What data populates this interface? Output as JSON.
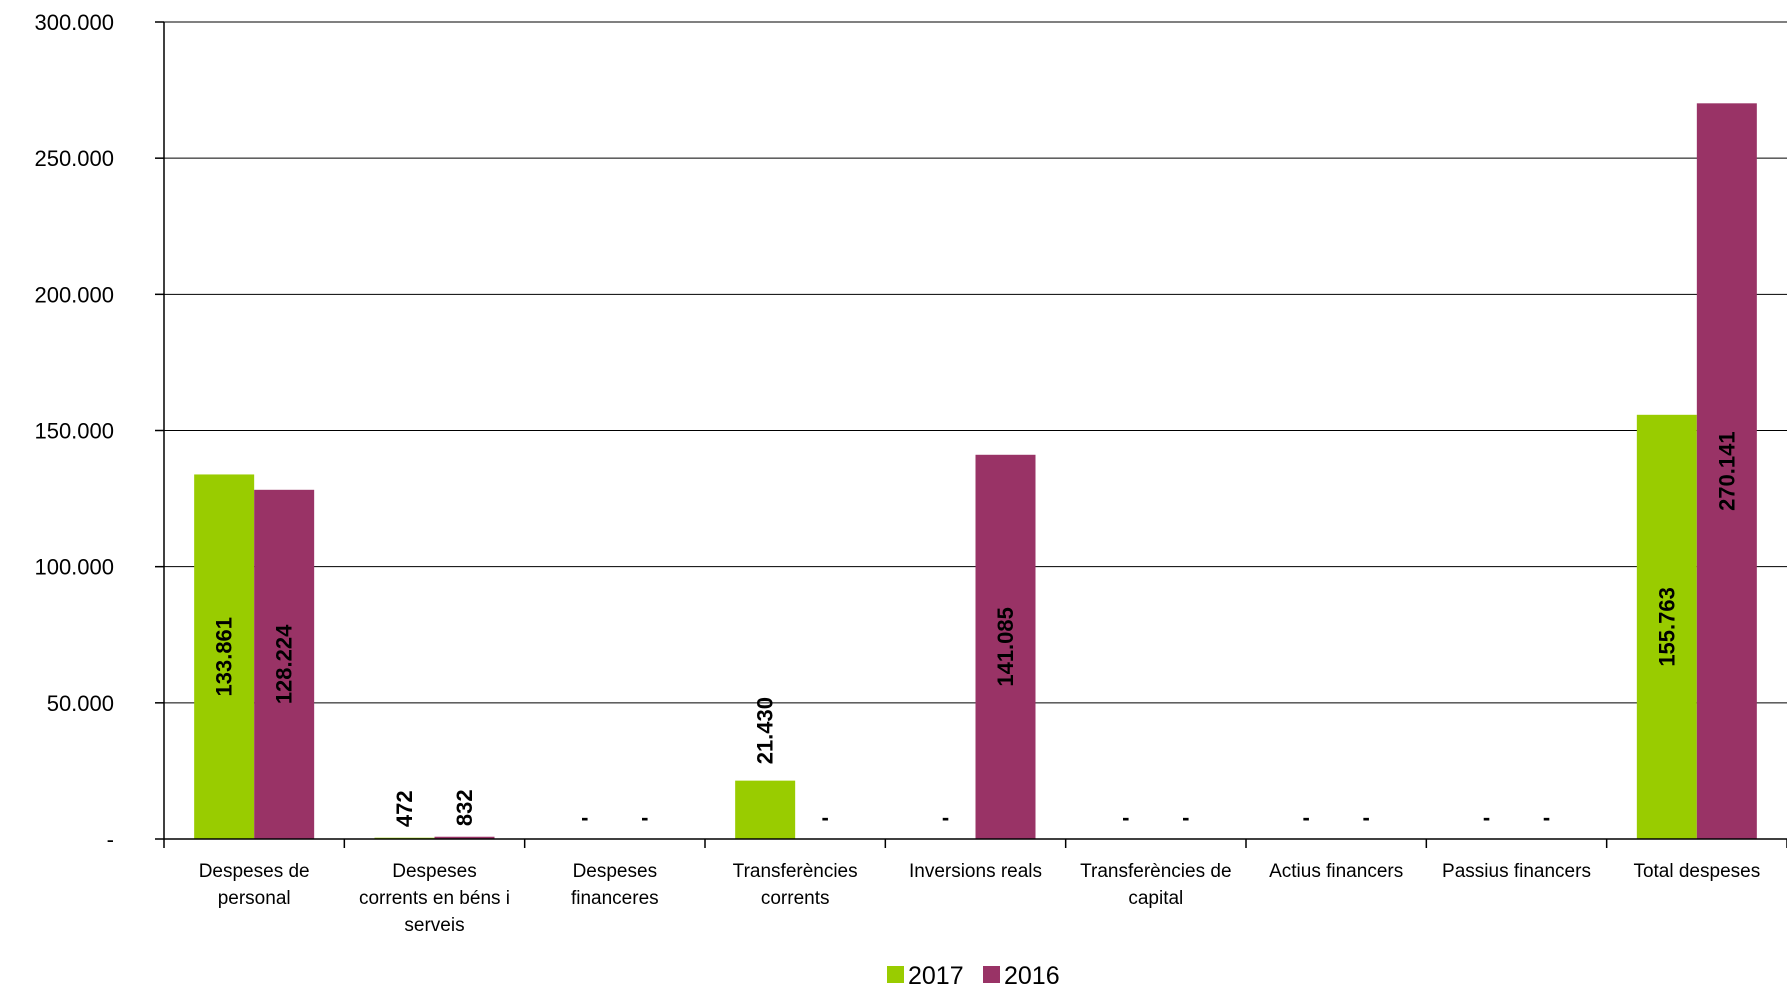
{
  "chart_data": {
    "type": "bar",
    "categories": [
      [
        "Despeses de",
        "personal"
      ],
      [
        "Despeses",
        "corrents en béns i",
        "serveis"
      ],
      [
        "Despeses",
        "financeres"
      ],
      [
        "Transferències",
        "corrents"
      ],
      [
        "Inversions reals"
      ],
      [
        "Transferències de",
        "capital"
      ],
      [
        "Actius financers"
      ],
      [
        "Passius financers"
      ],
      [
        "Total despeses"
      ]
    ],
    "series": [
      {
        "name": "2017",
        "color": "#99cc00",
        "values": [
          133861,
          472,
          0,
          21430,
          0,
          0,
          0,
          0,
          155763
        ],
        "labels": [
          "133.861",
          "472",
          "-",
          "21.430",
          "-",
          "-",
          "-",
          "-",
          "155.763"
        ]
      },
      {
        "name": "2016",
        "color": "#993366",
        "values": [
          128224,
          832,
          0,
          0,
          141085,
          0,
          0,
          0,
          270141
        ],
        "labels": [
          "128.224",
          "832",
          "-",
          "-",
          "141.085",
          "-",
          "-",
          "-",
          "270.141"
        ]
      }
    ],
    "ylim": [
      0,
      300000
    ],
    "yticks": [
      0,
      50000,
      100000,
      150000,
      200000,
      250000,
      300000
    ],
    "ytick_labels": [
      "-",
      "50.000",
      "100.000",
      "150.000",
      "200.000",
      "250.000",
      "300.000"
    ],
    "grid": true,
    "legend_position": "bottom-center"
  }
}
